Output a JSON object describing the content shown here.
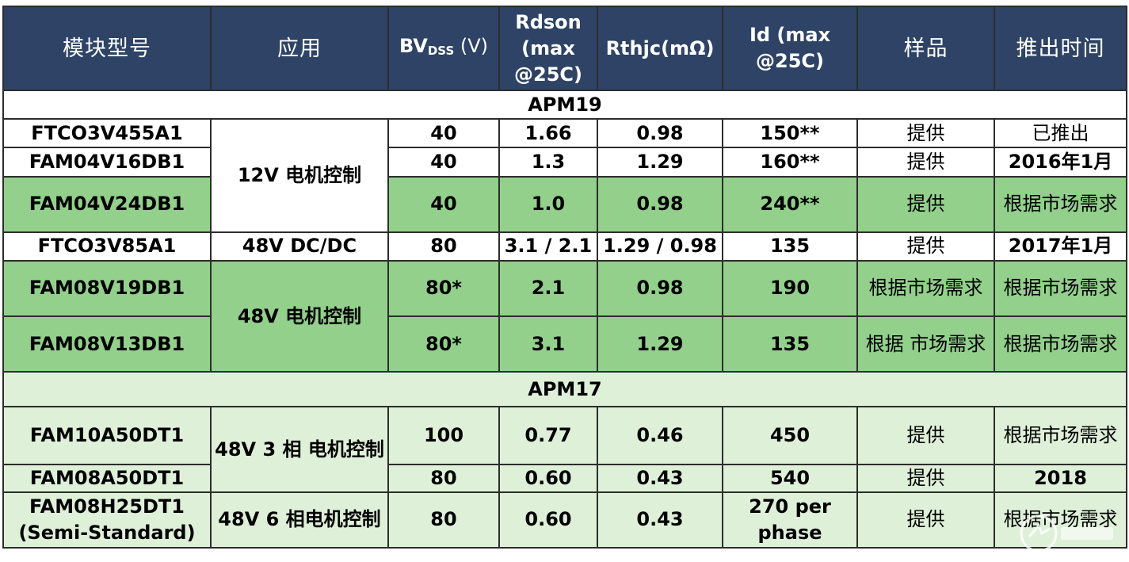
{
  "header": {
    "model": "模块型号",
    "application": "应用",
    "bvdss_main": "BV",
    "bvdss_sub": "DSS",
    "bvdss_unit": " (V)",
    "rdson": "Rdson (max @25C)",
    "rthjc": "Rthjc(mΩ)",
    "id": "Id (max @25C)",
    "sample": "样品",
    "launch": "推出时间"
  },
  "sections": [
    {
      "name": "APM19",
      "rows": [
        {
          "model": "FTCO3V455A1",
          "bvdss": "40",
          "rdson": "1.66",
          "rthjc": "0.98",
          "id": "150**",
          "sample": "提供",
          "launch": "已推出"
        },
        {
          "model": "FAM04V16DB1",
          "bvdss": "40",
          "rdson": "1.3",
          "rthjc": "1.29",
          "id": "160**",
          "sample": "提供",
          "launch": "2016年1月"
        },
        {
          "model": "FAM04V24DB1",
          "bvdss": "40",
          "rdson": "1.0",
          "rthjc": "0.98",
          "id": "240**",
          "sample": "提供",
          "launch": "根据市场需求"
        },
        {
          "model": "FTCO3V85A1",
          "application": "48V DC/DC",
          "bvdss": "80",
          "rdson": "3.1 / 2.1",
          "rthjc": "1.29 / 0.98",
          "id": "135",
          "sample": "提供",
          "launch": "2017年1月"
        },
        {
          "model": "FAM08V19DB1",
          "bvdss": "80*",
          "rdson": "2.1",
          "rthjc": "0.98",
          "id": "190",
          "sample": "根据市场需求",
          "launch": "根据市场需求"
        },
        {
          "model": "FAM08V13DB1",
          "bvdss": "80*",
          "rdson": "3.1",
          "rthjc": "1.29",
          "id": "135",
          "sample": "根据 市场需求",
          "launch": "根据市场需求"
        }
      ],
      "groups": {
        "motor12v": "12V 电机控制",
        "motor48v": "48V 电机控制"
      }
    },
    {
      "name": "APM17",
      "rows": [
        {
          "model": "FAM10A50DT1",
          "bvdss": "100",
          "rdson": "0.77",
          "rthjc": "0.46",
          "id": "450",
          "sample": "提供",
          "launch": "根据市场需求"
        },
        {
          "model": "FAM08A50DT1",
          "bvdss": "80",
          "rdson": "0.60",
          "rthjc": "0.43",
          "id": "540",
          "sample": "提供",
          "launch": "2018"
        },
        {
          "model": "FAM08H25DT1 (Semi-Standard)",
          "application": "48V 6 相电机控制",
          "bvdss": "80",
          "rdson": "0.60",
          "rthjc": "0.43",
          "id": "270 per phase",
          "sample": "提供",
          "launch": "根据市场需求"
        }
      ],
      "groups": {
        "motor48v3": "48V 3 相 电机控制"
      }
    }
  ],
  "watermark": {
    "icon": "electronic-fans-logo"
  },
  "colors": {
    "header": "#2e4365",
    "green": "#92d08b",
    "light_green": "#dff0d9",
    "white": "#ffffff"
  }
}
